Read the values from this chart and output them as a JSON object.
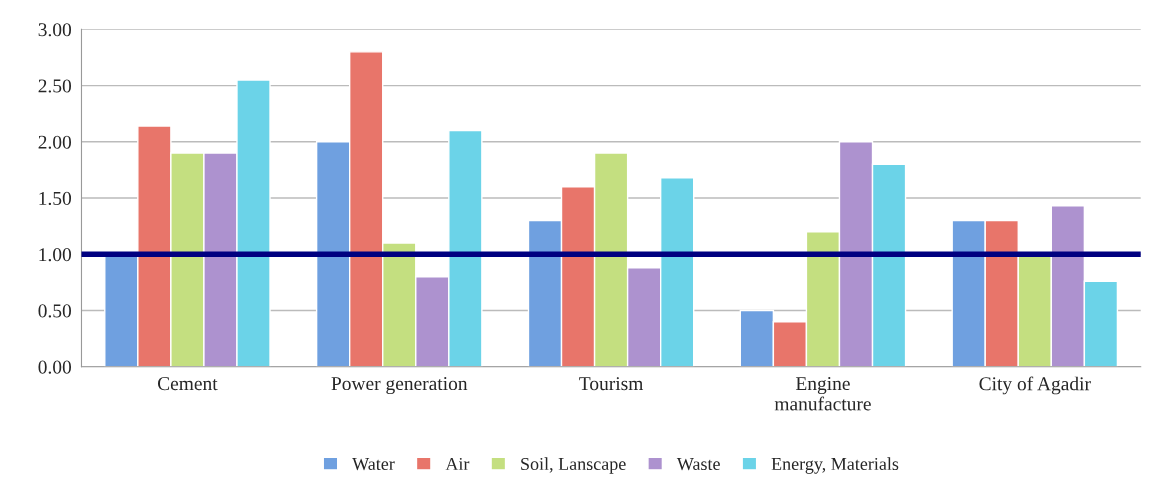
{
  "chart_data": {
    "type": "bar",
    "categories": [
      "Cement",
      "Power generation",
      "Tourism",
      "Engine\nmanufacture",
      "City of Agadir"
    ],
    "series": [
      {
        "name": "Water",
        "color": "#6fa0e0",
        "values": [
          1.0,
          2.0,
          1.3,
          0.5,
          1.3
        ]
      },
      {
        "name": "Air",
        "color": "#e8756a",
        "values": [
          2.14,
          2.8,
          1.6,
          0.4,
          1.3
        ]
      },
      {
        "name": "Soil, Lanscape",
        "color": "#c4df80",
        "values": [
          1.9,
          1.1,
          1.9,
          1.2,
          1.0
        ]
      },
      {
        "name": "Waste",
        "color": "#ad92cf",
        "values": [
          1.9,
          0.8,
          0.88,
          2.0,
          1.43
        ]
      },
      {
        "name": "Energy, Materials",
        "color": "#6bd3e8",
        "values": [
          2.55,
          2.1,
          1.68,
          1.8,
          0.76
        ]
      }
    ],
    "ylim": [
      0,
      3
    ],
    "yticks": [
      {
        "value": 0,
        "label": "0.00"
      },
      {
        "value": 0.5,
        "label": "0.50"
      },
      {
        "value": 1,
        "label": "1.00"
      },
      {
        "value": 1.5,
        "label": "1.50"
      },
      {
        "value": 2,
        "label": "2.00"
      },
      {
        "value": 2.5,
        "label": "2.50"
      },
      {
        "value": 3,
        "label": "3.00"
      }
    ],
    "ref_lines": [
      {
        "axis": "y",
        "value": 1,
        "color": "#000080"
      }
    ],
    "grid": "y",
    "legend": "bottom"
  }
}
